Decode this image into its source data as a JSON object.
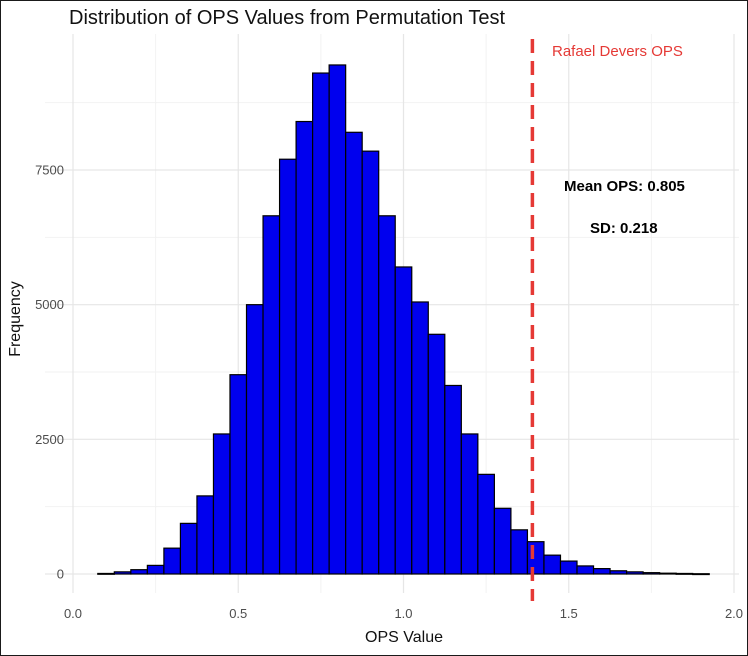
{
  "chart_data": {
    "type": "bar",
    "title": "Distribution of OPS Values from Permutation Test",
    "xlabel": "OPS Value",
    "ylabel": "Frequency",
    "xlim": [
      0.0,
      2.0
    ],
    "ylim": [
      0,
      9500
    ],
    "x_ticks": [
      "0.0",
      "0.5",
      "1.0",
      "1.5",
      "2.0"
    ],
    "y_ticks": [
      "0",
      "2500",
      "5000",
      "7500"
    ],
    "grid": true,
    "bin_width": 0.05,
    "bins": [
      {
        "x": 0.1,
        "value": 10
      },
      {
        "x": 0.15,
        "value": 40
      },
      {
        "x": 0.2,
        "value": 80
      },
      {
        "x": 0.25,
        "value": 160
      },
      {
        "x": 0.3,
        "value": 480
      },
      {
        "x": 0.35,
        "value": 940
      },
      {
        "x": 0.4,
        "value": 1450
      },
      {
        "x": 0.45,
        "value": 2600
      },
      {
        "x": 0.5,
        "value": 3700
      },
      {
        "x": 0.55,
        "value": 5000
      },
      {
        "x": 0.6,
        "value": 6650
      },
      {
        "x": 0.65,
        "value": 7700
      },
      {
        "x": 0.7,
        "value": 8400
      },
      {
        "x": 0.75,
        "value": 9300
      },
      {
        "x": 0.8,
        "value": 9450
      },
      {
        "x": 0.85,
        "value": 8200
      },
      {
        "x": 0.9,
        "value": 7850
      },
      {
        "x": 0.95,
        "value": 6650
      },
      {
        "x": 1.0,
        "value": 5700
      },
      {
        "x": 1.05,
        "value": 5050
      },
      {
        "x": 1.1,
        "value": 4450
      },
      {
        "x": 1.15,
        "value": 3500
      },
      {
        "x": 1.2,
        "value": 2600
      },
      {
        "x": 1.25,
        "value": 1850
      },
      {
        "x": 1.3,
        "value": 1220
      },
      {
        "x": 1.35,
        "value": 820
      },
      {
        "x": 1.4,
        "value": 600
      },
      {
        "x": 1.45,
        "value": 350
      },
      {
        "x": 1.5,
        "value": 240
      },
      {
        "x": 1.55,
        "value": 150
      },
      {
        "x": 1.6,
        "value": 100
      },
      {
        "x": 1.65,
        "value": 60
      },
      {
        "x": 1.7,
        "value": 40
      },
      {
        "x": 1.75,
        "value": 25
      },
      {
        "x": 1.8,
        "value": 15
      },
      {
        "x": 1.85,
        "value": 10
      },
      {
        "x": 1.9,
        "value": 5
      }
    ],
    "bar_color": "#0000ee",
    "reference_line": {
      "x": 1.39,
      "label": "Rafael Devers OPS",
      "color": "#e53935",
      "style": "dashed"
    },
    "annotations": [
      {
        "text": "Mean OPS: 0.805"
      },
      {
        "text": "SD: 0.218"
      }
    ]
  }
}
